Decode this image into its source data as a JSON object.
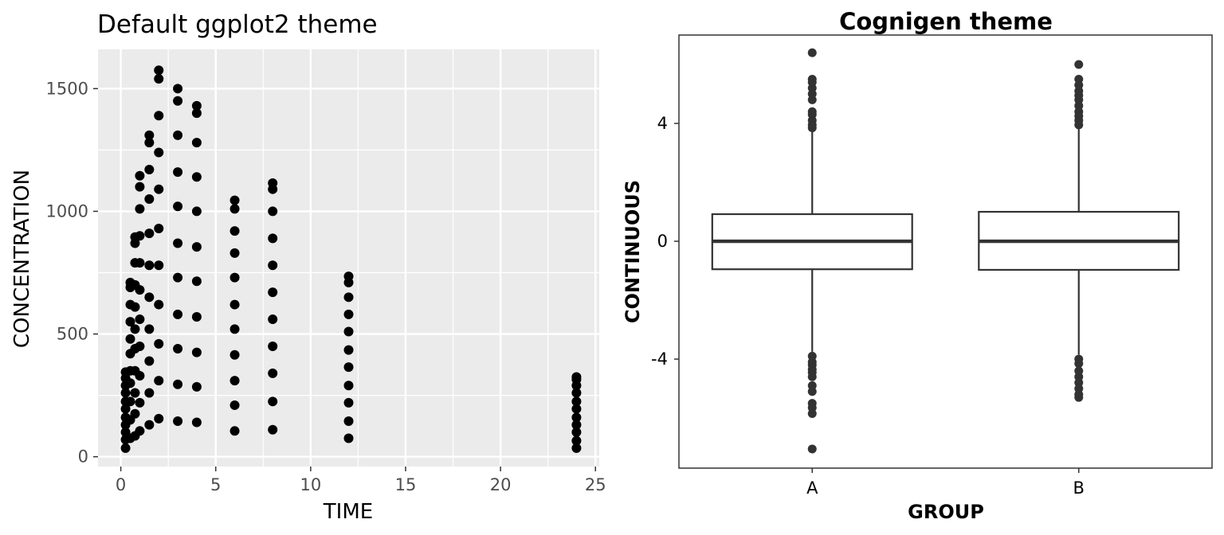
{
  "chart_data": [
    {
      "type": "scatter",
      "title": "Default ggplot2 theme",
      "theme": "ggplot2 default (grey panel, white grid)",
      "xlabel": "TIME",
      "ylabel": "CONCENTRATION",
      "xlim": [
        -1.2,
        25.2
      ],
      "ylim": [
        -40,
        1660
      ],
      "xticks": [
        0,
        5,
        10,
        15,
        20,
        25
      ],
      "yticks": [
        0,
        500,
        1000,
        1500
      ],
      "grid": true,
      "point_color": "#000000",
      "panel_color": "#ebebeb",
      "series": [
        {
          "points": [
            {
              "x": 0.25,
              "values": [
                35,
                70,
                100,
                130,
                160,
                195,
                225,
                260,
                290,
                320,
                345
              ]
            },
            {
              "x": 0.5,
              "values": [
                75,
                150,
                225,
                300,
                350,
                420,
                480,
                550,
                620,
                690,
                710
              ]
            },
            {
              "x": 0.75,
              "values": [
                85,
                175,
                260,
                350,
                440,
                520,
                610,
                700,
                790,
                870,
                895
              ]
            },
            {
              "x": 1,
              "values": [
                105,
                220,
                330,
                450,
                560,
                680,
                790,
                900,
                1010,
                1100,
                1145
              ]
            },
            {
              "x": 1.5,
              "values": [
                130,
                260,
                390,
                520,
                650,
                780,
                910,
                1050,
                1170,
                1280,
                1310
              ]
            },
            {
              "x": 2,
              "values": [
                155,
                310,
                460,
                620,
                780,
                930,
                1090,
                1240,
                1390,
                1540,
                1575
              ]
            },
            {
              "x": 3,
              "values": [
                145,
                295,
                440,
                580,
                730,
                870,
                1020,
                1160,
                1310,
                1450,
                1500
              ]
            },
            {
              "x": 4,
              "values": [
                140,
                285,
                425,
                570,
                715,
                855,
                1000,
                1140,
                1280,
                1400,
                1430
              ]
            },
            {
              "x": 6,
              "values": [
                105,
                210,
                310,
                415,
                520,
                620,
                730,
                830,
                920,
                1010,
                1045
              ]
            },
            {
              "x": 8,
              "values": [
                110,
                225,
                340,
                450,
                560,
                670,
                780,
                890,
                1000,
                1090,
                1115
              ]
            },
            {
              "x": 12,
              "values": [
                75,
                145,
                220,
                290,
                365,
                435,
                510,
                580,
                650,
                710,
                735
              ]
            },
            {
              "x": 24,
              "values": [
                35,
                65,
                100,
                130,
                160,
                195,
                225,
                260,
                290,
                315,
                325
              ]
            }
          ]
        }
      ]
    },
    {
      "type": "box",
      "title": "Cognigen theme",
      "theme": "Cognigen (white panel, border, no grid)",
      "xlabel": "GROUP",
      "ylabel": "CONTINUOUS",
      "categories": [
        "A",
        "B"
      ],
      "ylim": [
        -7.7,
        7.0
      ],
      "yticks": [
        -4,
        0,
        4
      ],
      "grid": false,
      "line_color": "#333333",
      "boxes": [
        {
          "group": "A",
          "q1": -0.95,
          "median": 0.0,
          "q3": 0.92,
          "whisker_low": -3.75,
          "whisker_high": 3.75,
          "outliers": [
            6.4,
            5.5,
            5.4,
            5.2,
            5.0,
            4.8,
            4.4,
            4.3,
            4.1,
            3.95,
            3.85,
            -3.9,
            -4.1,
            -4.2,
            -4.35,
            -4.45,
            -4.6,
            -4.9,
            -5.1,
            -5.5,
            -5.65,
            -5.85,
            -7.05
          ]
        },
        {
          "group": "B",
          "q1": -0.97,
          "median": 0.0,
          "q3": 1.0,
          "whisker_low": -3.85,
          "whisker_high": 3.9,
          "outliers": [
            6.0,
            5.5,
            5.3,
            5.1,
            4.95,
            4.8,
            4.6,
            4.4,
            4.25,
            4.1,
            3.95,
            -4.0,
            -4.15,
            -4.4,
            -4.6,
            -4.8,
            -5.0,
            -5.2,
            -5.3
          ]
        }
      ]
    }
  ]
}
